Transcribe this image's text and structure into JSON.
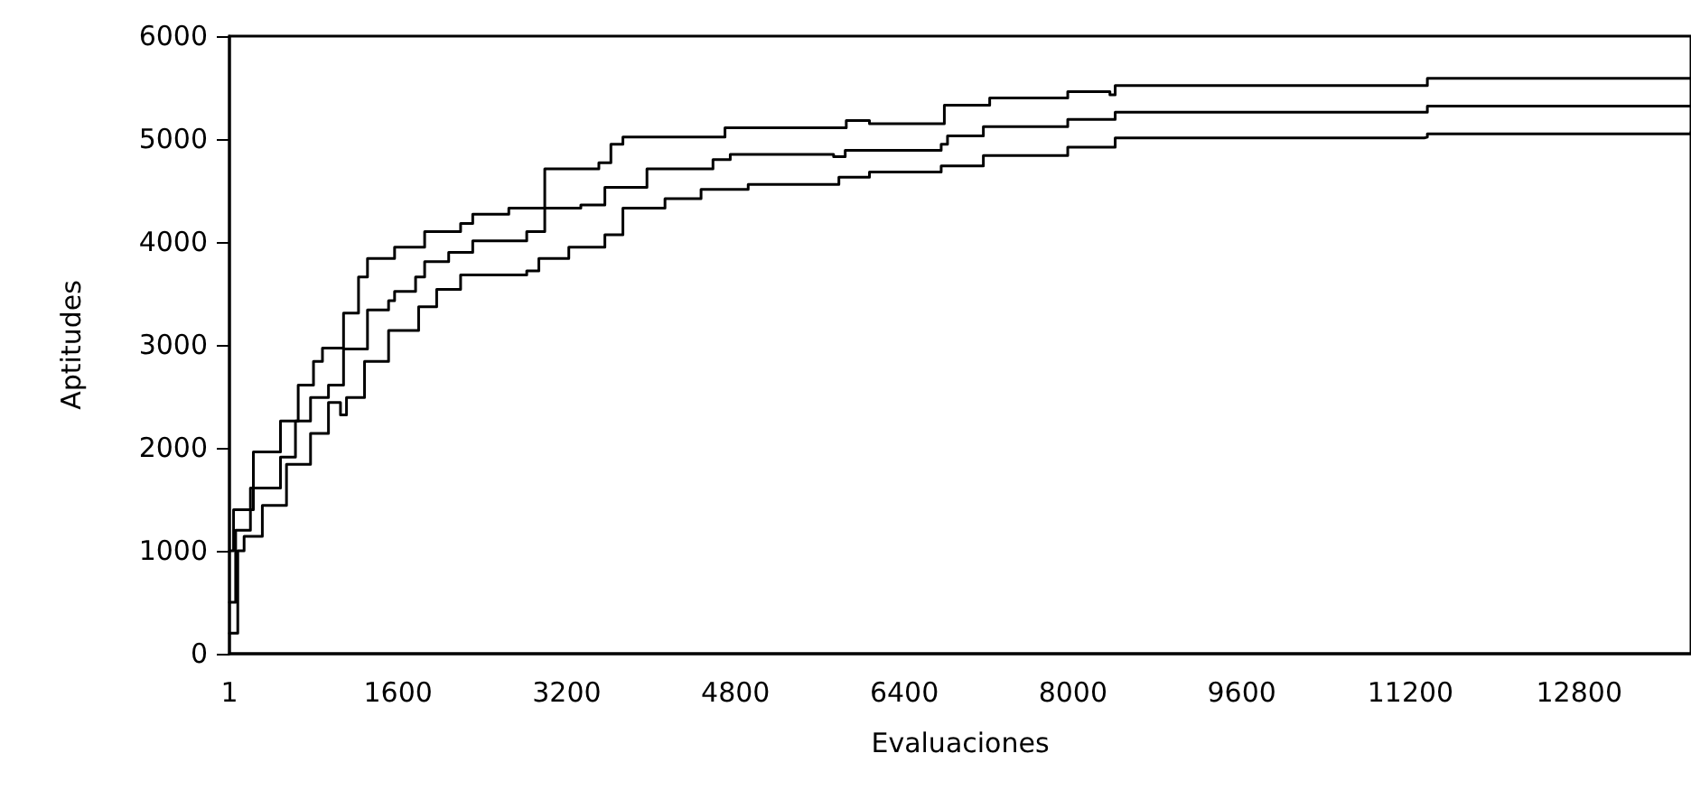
{
  "chart_data": {
    "type": "step",
    "xlabel": "Evaluaciones",
    "ylabel": "Aptitudes",
    "xlim": [
      1,
      13860
    ],
    "xticks": [
      1,
      1600,
      3200,
      4800,
      6400,
      8000,
      9600,
      11200,
      12800
    ],
    "ylim": [
      0,
      6000
    ],
    "yticks": [
      0,
      1000,
      2000,
      3000,
      4000,
      5000,
      6000
    ],
    "grid": false,
    "marker": "none",
    "line_style": "solid",
    "series": [
      {
        "color": "#000000",
        "x": [
          1,
          40,
          228,
          485,
          653,
          798,
          883,
          1054,
          1083,
          1225,
          1310,
          1567,
          1852,
          2193,
          2308,
          2650,
          2991,
          3504,
          3618,
          3732,
          4530,
          4700,
          5780,
          5850,
          6070,
          6750,
          6780,
          7210,
          7890,
          7950,
          8350,
          8400,
          11330,
          11360,
          13860
        ],
        "values": [
          1000,
          1400,
          1960,
          2260,
          2610,
          2840,
          2970,
          2970,
          3310,
          3660,
          3840,
          3950,
          4100,
          4180,
          4270,
          4330,
          4710,
          4770,
          4950,
          5020,
          5020,
          5110,
          5110,
          5180,
          5150,
          5150,
          5330,
          5400,
          5400,
          5460,
          5430,
          5520,
          5520,
          5590,
          5600
        ]
      },
      {
        "color": "#000000",
        "x": [
          1,
          60,
          200,
          485,
          627,
          770,
          940,
          1083,
          1310,
          1510,
          1567,
          1766,
          1852,
          2080,
          2308,
          2650,
          2820,
          2991,
          3333,
          3561,
          3960,
          4586,
          4750,
          5730,
          5840,
          6750,
          6810,
          7150,
          7890,
          7950,
          8350,
          8400,
          11330,
          11360,
          13860
        ],
        "values": [
          500,
          1200,
          1610,
          1910,
          2260,
          2490,
          2610,
          2960,
          3340,
          3430,
          3520,
          3660,
          3810,
          3900,
          4010,
          4010,
          4100,
          4330,
          4360,
          4530,
          4710,
          4800,
          4850,
          4830,
          4890,
          4950,
          5030,
          5120,
          5120,
          5190,
          5190,
          5260,
          5260,
          5320,
          5330
        ]
      },
      {
        "color": "#000000",
        "x": [
          1,
          80,
          140,
          313,
          542,
          770,
          940,
          1054,
          1111,
          1282,
          1510,
          1795,
          1966,
          2193,
          2820,
          2935,
          3219,
          3561,
          3732,
          4131,
          4473,
          4920,
          5780,
          6070,
          6750,
          7150,
          7890,
          7950,
          8350,
          8400,
          11330,
          11360,
          13860
        ],
        "values": [
          200,
          1000,
          1140,
          1440,
          1840,
          2140,
          2440,
          2320,
          2490,
          2840,
          3140,
          3370,
          3540,
          3680,
          3720,
          3840,
          3950,
          4070,
          4330,
          4420,
          4510,
          4560,
          4630,
          4680,
          4740,
          4840,
          4840,
          4920,
          4920,
          5010,
          5020,
          5050,
          5070
        ]
      }
    ]
  }
}
